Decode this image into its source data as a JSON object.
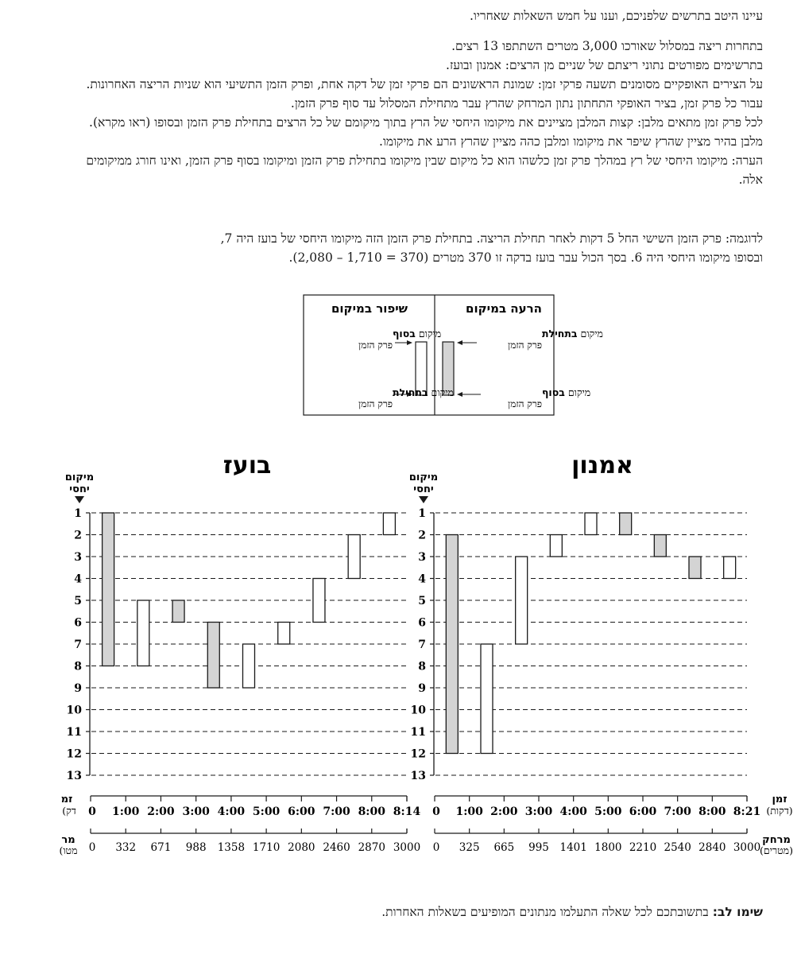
{
  "intro": "עיינו היטב בתרשים שלפניכם, וענו על חמש השאלות שאחריו.",
  "paragraphs": [
    "בתחרות ריצה במסלול שאורכו 3,000 מטרים השתתפו 13 רצים.",
    "בתרשימים מפורטים נתוני ריצתם של שניים מן הרצים: אמנון ובועז.",
    "על הצירים האופקיים מסומנים תשעה פרקי זמן: שמונת הראשונים הם פרקי זמן של דקה אחת, ופרק הזמן התשיעי הוא שניות הריצה האחרונות. עבור כל פרק זמן, בציר האופקי התחתון נתון המרחק שהרץ עבר מתחילת המסלול עד סוף פרק הזמן.",
    "לכל פרק זמן מתאים מלבן: קצות המלבן מציינים את מיקומו היחסי של הרץ בתוך מיקומם של כל הרצים בתחילת פרק הזמן ובסופו (ראו מקרא). מלבן בהיר מציין שהרץ שיפר את מיקומו ומלבן כהה מציין שהרץ הרע את מיקומו.",
    "הערה: מיקומו היחסי של רץ במהלך פרק זמן כלשהו הוא כל מיקום שבין מיקומו בתחילת פרק הזמן ומיקומו בסוף פרק הזמן, ואינו חורג ממיקומים אלה."
  ],
  "example": [
    "לדוגמה: פרק הזמן השישי החל 5 דקות לאחר תחילת הריצה. בתחילת פרק הזמן הזה מיקומו היחסי של בועז היה 7,",
    "ובסופו מיקומו היחסי היה 6. בסך הכול עבר בועז בדקה זו 370 מטרים (370 = 1,710 – 2,080)."
  ],
  "legend": {
    "worse_title": "הרעה במיקום",
    "better_title": "שיפור במיקום",
    "pos_word": "מיקום",
    "at_start": "בתחילת",
    "at_end": "בסוף",
    "period": "פרק הזמן"
  },
  "axis_labels": {
    "rank_line1": "מיקום",
    "rank_line2": "יחסי",
    "time_line1": "זמן",
    "time_line2": "(דקות)",
    "dist_line1": "מרחק",
    "dist_line2": "(מטרים)",
    "time_cut_line1": "זמ",
    "time_cut_line2": "(דק",
    "dist_cut_line1": "מר",
    "dist_cut_line2": "(מטו"
  },
  "notice": {
    "label": "שימו לב:",
    "text": "בתשובתכם לכל שאלה התעלמו מנתונים המופיעים בשאלות האחרות."
  },
  "colors": {
    "worse_fill": "#d4d4d4",
    "better_fill": "#ffffff",
    "stroke": "#1a1a1a"
  },
  "chart_data": [
    {
      "type": "floating-bar",
      "title": "בועז",
      "ylim": [
        1,
        13
      ],
      "y_reversed": true,
      "rank_ticks": [
        "1",
        "2",
        "3",
        "4",
        "5",
        "6",
        "7",
        "8",
        "9",
        "10",
        "11",
        "12",
        "13"
      ],
      "time_ticks": [
        "0",
        "1:00",
        "2:00",
        "3:00",
        "4:00",
        "5:00",
        "6:00",
        "7:00",
        "8:00",
        "8:14"
      ],
      "distance_ticks": [
        "0",
        "332",
        "671",
        "988",
        "1358",
        "1710",
        "2080",
        "2460",
        "2870",
        "3000"
      ],
      "periods": [
        {
          "start_rank": 1,
          "end_rank": 8
        },
        {
          "start_rank": 8,
          "end_rank": 5
        },
        {
          "start_rank": 5,
          "end_rank": 6
        },
        {
          "start_rank": 6,
          "end_rank": 9
        },
        {
          "start_rank": 9,
          "end_rank": 7
        },
        {
          "start_rank": 7,
          "end_rank": 6
        },
        {
          "start_rank": 6,
          "end_rank": 4
        },
        {
          "start_rank": 4,
          "end_rank": 2
        },
        {
          "start_rank": 2,
          "end_rank": 1
        }
      ]
    },
    {
      "type": "floating-bar",
      "title": "אמנון",
      "ylim": [
        1,
        13
      ],
      "y_reversed": true,
      "rank_ticks": [
        "1",
        "2",
        "3",
        "4",
        "5",
        "6",
        "7",
        "8",
        "9",
        "10",
        "11",
        "12",
        "13"
      ],
      "time_ticks": [
        "0",
        "1:00",
        "2:00",
        "3:00",
        "4:00",
        "5:00",
        "6:00",
        "7:00",
        "8:00",
        "8:21"
      ],
      "distance_ticks": [
        "0",
        "325",
        "665",
        "995",
        "1401",
        "1800",
        "2210",
        "2540",
        "2840",
        "3000"
      ],
      "periods": [
        {
          "start_rank": 2,
          "end_rank": 12
        },
        {
          "start_rank": 12,
          "end_rank": 7
        },
        {
          "start_rank": 7,
          "end_rank": 3
        },
        {
          "start_rank": 3,
          "end_rank": 2
        },
        {
          "start_rank": 2,
          "end_rank": 1
        },
        {
          "start_rank": 1,
          "end_rank": 2
        },
        {
          "start_rank": 2,
          "end_rank": 3
        },
        {
          "start_rank": 3,
          "end_rank": 4
        },
        {
          "start_rank": 4,
          "end_rank": 3
        }
      ]
    }
  ]
}
